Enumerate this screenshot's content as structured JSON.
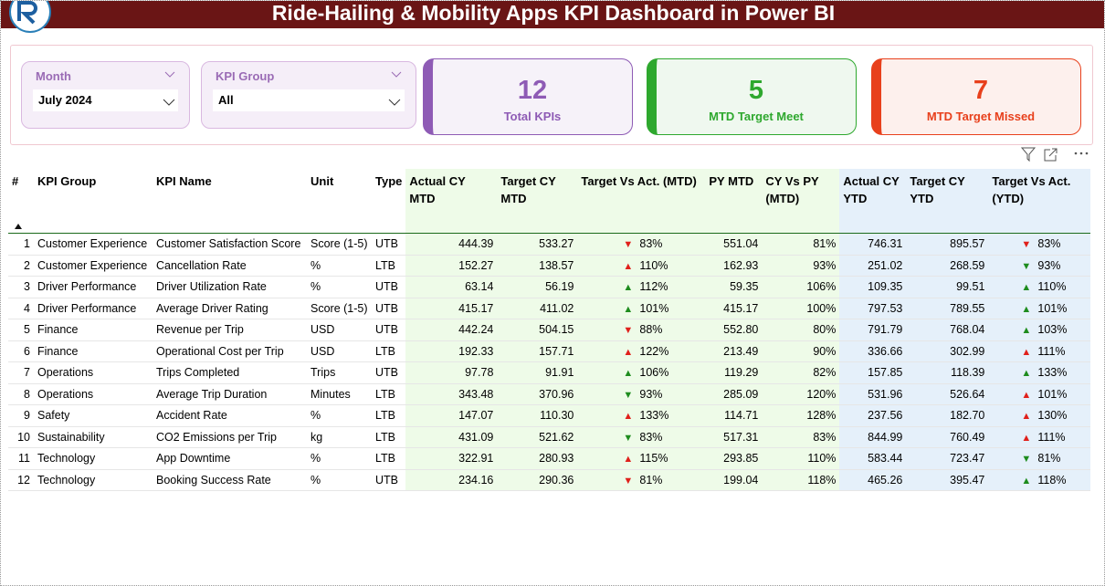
{
  "header": {
    "title": "Ride-Hailing & Mobility Apps KPI Dashboard in Power BI"
  },
  "slicers": [
    {
      "label": "Month",
      "value": "July 2024"
    },
    {
      "label": "KPI Group",
      "value": "All"
    }
  ],
  "cards": [
    {
      "value": "12",
      "label": "Total KPIs",
      "color": "#8e5bb5"
    },
    {
      "value": "5",
      "label": "MTD Target Meet",
      "color": "#2ea82e"
    },
    {
      "value": "7",
      "label": "MTD Target Missed",
      "color": "#e8401c"
    }
  ],
  "table": {
    "headers": [
      "#",
      "KPI Group",
      "KPI Name",
      "Unit",
      "Type",
      "Actual CY MTD",
      "Target CY MTD",
      "Target Vs Act. (MTD)",
      "PY MTD",
      "CY Vs PY (MTD)",
      "Actual CY YTD",
      "Target CY YTD",
      "Target Vs Act. (YTD)"
    ],
    "rows": [
      [
        "1",
        "Customer Experience",
        "Customer Satisfaction Score",
        "Score (1-5)",
        "UTB",
        "444.39",
        "533.27",
        "83%",
        "551.04",
        "81%",
        "746.31",
        "895.57",
        "83%"
      ],
      [
        "2",
        "Customer Experience",
        "Cancellation Rate",
        "%",
        "LTB",
        "152.27",
        "138.57",
        "110%",
        "162.93",
        "93%",
        "251.02",
        "268.59",
        "93%"
      ],
      [
        "3",
        "Driver Performance",
        "Driver Utilization Rate",
        "%",
        "UTB",
        "63.14",
        "56.19",
        "112%",
        "59.35",
        "106%",
        "109.35",
        "99.51",
        "110%"
      ],
      [
        "4",
        "Driver Performance",
        "Average Driver Rating",
        "Score (1-5)",
        "UTB",
        "415.17",
        "411.02",
        "101%",
        "415.17",
        "100%",
        "797.53",
        "789.55",
        "101%"
      ],
      [
        "5",
        "Finance",
        "Revenue per Trip",
        "USD",
        "UTB",
        "442.24",
        "504.15",
        "88%",
        "552.80",
        "80%",
        "791.79",
        "768.04",
        "103%"
      ],
      [
        "6",
        "Finance",
        "Operational Cost per Trip",
        "USD",
        "LTB",
        "192.33",
        "157.71",
        "122%",
        "213.49",
        "90%",
        "336.66",
        "302.99",
        "111%"
      ],
      [
        "7",
        "Operations",
        "Trips Completed",
        "Trips",
        "UTB",
        "97.78",
        "91.91",
        "106%",
        "119.29",
        "82%",
        "157.85",
        "118.39",
        "133%"
      ],
      [
        "8",
        "Operations",
        "Average Trip Duration",
        "Minutes",
        "LTB",
        "343.48",
        "370.96",
        "93%",
        "285.09",
        "120%",
        "531.96",
        "526.64",
        "101%"
      ],
      [
        "9",
        "Safety",
        "Accident Rate",
        "%",
        "LTB",
        "147.07",
        "110.30",
        "133%",
        "114.71",
        "128%",
        "237.56",
        "182.70",
        "130%"
      ],
      [
        "10",
        "Sustainability",
        "CO2 Emissions per Trip",
        "kg",
        "LTB",
        "431.09",
        "521.62",
        "83%",
        "517.31",
        "83%",
        "844.99",
        "760.49",
        "111%"
      ],
      [
        "11",
        "Technology",
        "App Downtime",
        "%",
        "LTB",
        "322.91",
        "280.93",
        "115%",
        "293.85",
        "110%",
        "583.44",
        "723.47",
        "81%"
      ],
      [
        "12",
        "Technology",
        "Booking Success Rate",
        "%",
        "UTB",
        "234.16",
        "290.36",
        "81%",
        "199.04",
        "118%",
        "465.26",
        "395.47",
        "118%"
      ]
    ],
    "icons": [
      [
        {
          "glyph": "▼",
          "color": "#e0201b"
        },
        {
          "glyph": "▼",
          "color": "#e0201b"
        }
      ],
      [
        {
          "glyph": "▲",
          "color": "#e0201b"
        },
        {
          "glyph": "▼",
          "color": "#1e8c1e"
        }
      ],
      [
        {
          "glyph": "▲",
          "color": "#1e8c1e"
        },
        {
          "glyph": "▲",
          "color": "#1e8c1e"
        }
      ],
      [
        {
          "glyph": "▲",
          "color": "#1e8c1e"
        },
        {
          "glyph": "▲",
          "color": "#1e8c1e"
        }
      ],
      [
        {
          "glyph": "▼",
          "color": "#e0201b"
        },
        {
          "glyph": "▲",
          "color": "#1e8c1e"
        }
      ],
      [
        {
          "glyph": "▲",
          "color": "#e0201b"
        },
        {
          "glyph": "▲",
          "color": "#e0201b"
        }
      ],
      [
        {
          "glyph": "▲",
          "color": "#1e8c1e"
        },
        {
          "glyph": "▲",
          "color": "#1e8c1e"
        }
      ],
      [
        {
          "glyph": "▼",
          "color": "#1e8c1e"
        },
        {
          "glyph": "▲",
          "color": "#e0201b"
        }
      ],
      [
        {
          "glyph": "▲",
          "color": "#e0201b"
        },
        {
          "glyph": "▲",
          "color": "#e0201b"
        }
      ],
      [
        {
          "glyph": "▼",
          "color": "#1e8c1e"
        },
        {
          "glyph": "▲",
          "color": "#e0201b"
        }
      ],
      [
        {
          "glyph": "▲",
          "color": "#e0201b"
        },
        {
          "glyph": "▼",
          "color": "#1e8c1e"
        }
      ],
      [
        {
          "glyph": "▼",
          "color": "#e0201b"
        },
        {
          "glyph": "▲",
          "color": "#1e8c1e"
        }
      ]
    ]
  }
}
